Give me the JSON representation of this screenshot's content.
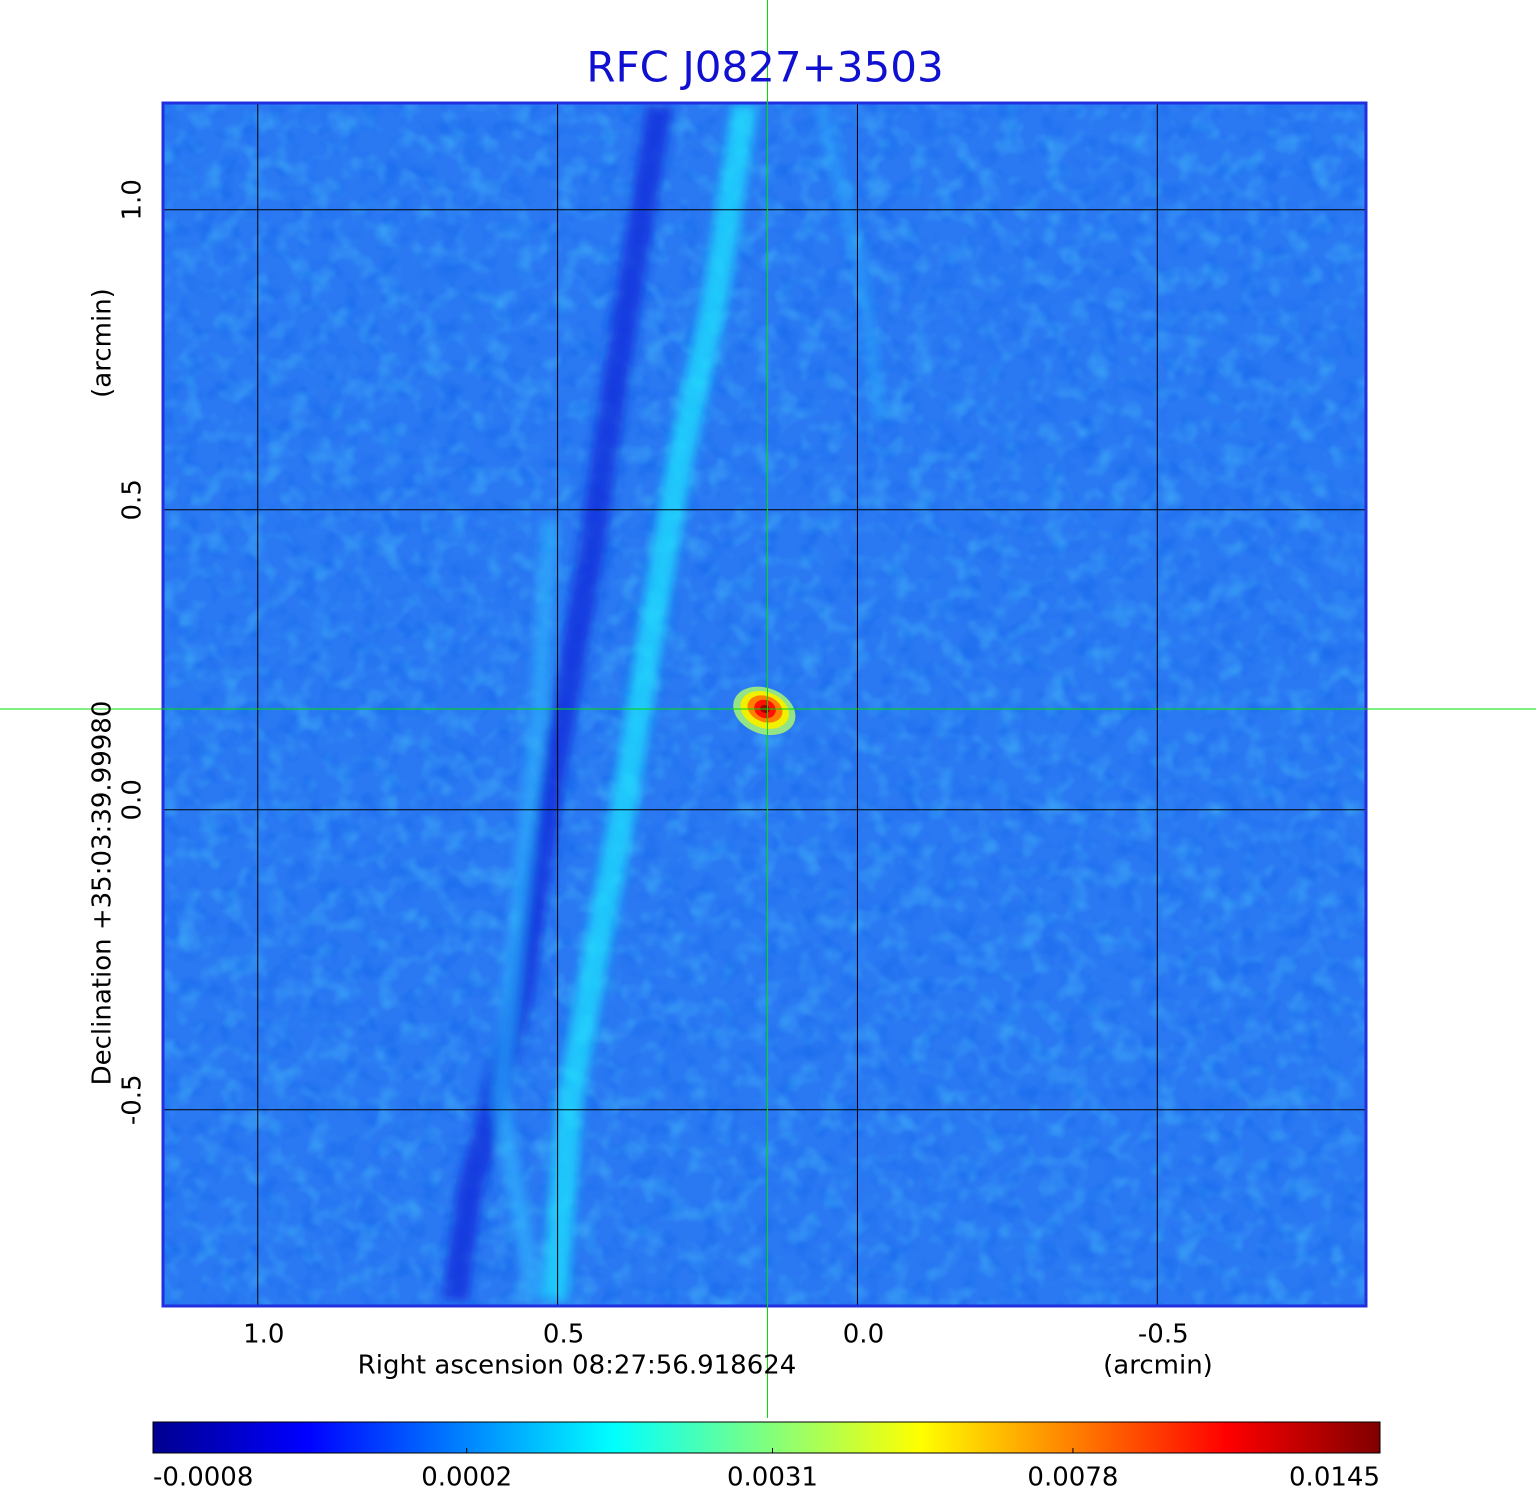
{
  "chart_data": {
    "type": "image",
    "title": "RFC J0827+3503",
    "x_label": "Right ascension  08:27:56.918624",
    "x_unit": "(arcmin)",
    "y_label": "Declination  +35:03:39.99980",
    "y_unit": "(arcmin)",
    "xlim": [
      1.158,
      -0.848
    ],
    "ylim": [
      -0.827,
      1.178
    ],
    "xticks": [
      {
        "value": 1,
        "label": "1.0"
      },
      0.5,
      {
        "value": 0,
        "label": "0.0"
      },
      -0.5
    ],
    "yticks": [
      {
        "value": 1,
        "label": "1.0"
      },
      0.5,
      {
        "value": 0,
        "label": "0.0"
      },
      -0.5
    ],
    "grid": true,
    "grid_color": "#000000",
    "crosshair": {
      "x": 0.15,
      "y": 0.168,
      "color": "#00dd00"
    },
    "colorbar": {
      "colormap": "jet",
      "scale": "sqrt",
      "clim": [
        -0.0008,
        0.0145
      ],
      "ticks": [
        -0.0008,
        0.0002,
        0.0031,
        0.0078,
        0.0145
      ]
    }
  }
}
